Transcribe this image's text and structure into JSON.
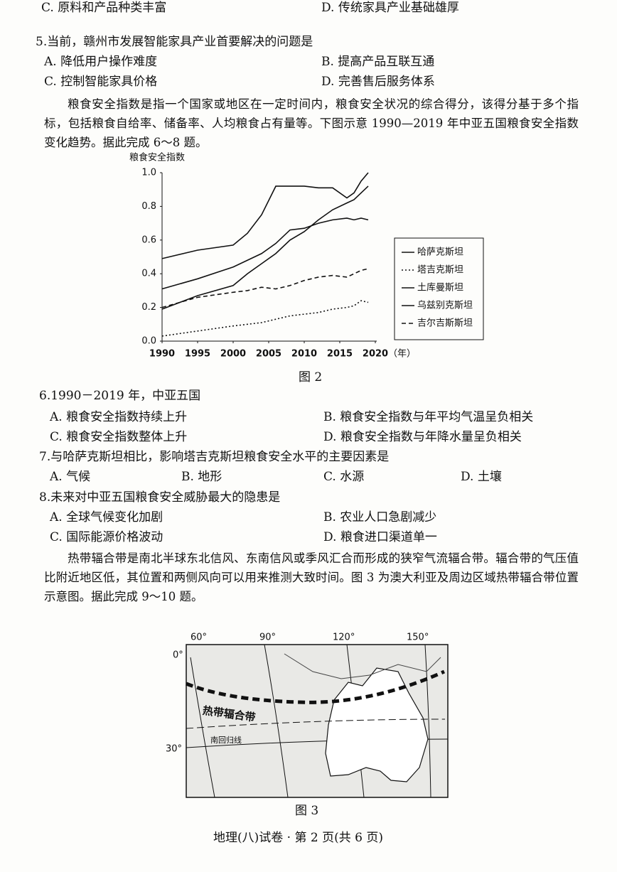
{
  "q4": {
    "options": [
      "",
      "",
      "C. 原料和产品种类丰富",
      "D. 传统家具产业基础雄厚"
    ]
  },
  "q5": {
    "stem": "5.当前，赣州市发展智能家具产业首要解决的问题是",
    "options": [
      "A. 降低用户操作难度",
      "B. 提高产品互联互通",
      "C. 控制智能家具价格",
      "D. 完善售后服务体系"
    ]
  },
  "passage1": "粮食安全指数是指一个国家或地区在一定时间内，粮食安全状况的综合得分，该得分基于多个指标，包括粮食自给率、储备率、人均粮食占有量等。下图示意 1990—2019 年中亚五国粮食安全指数变化趋势。据此完成 6～8 题。",
  "figure2": {
    "type": "line",
    "ylabel": "粮食安全指数",
    "xlabel": "（年）",
    "caption": "图 2",
    "xlim": [
      1990,
      2020
    ],
    "xticks": [
      1990,
      1995,
      2000,
      2005,
      2010,
      2015,
      2020
    ],
    "ylim": [
      0,
      1
    ],
    "yticks": [
      {
        "value": 0,
        "label": "0.0"
      },
      0.2,
      0.4,
      0.6,
      0.8,
      {
        "value": 1,
        "label": "1.0"
      }
    ],
    "x": [
      1990,
      1995,
      2000,
      2002,
      2004,
      2006,
      2008,
      2010,
      2012,
      2014,
      2016,
      2017,
      2018,
      2019
    ],
    "series": [
      {
        "name": "哈萨克斯坦",
        "color": "#111111",
        "dash": "solid",
        "values": [
          0.49,
          0.54,
          0.57,
          0.64,
          0.75,
          0.92,
          0.92,
          0.92,
          0.91,
          0.91,
          0.85,
          0.88,
          0.95,
          1.0
        ]
      },
      {
        "name": "塔吉克斯坦",
        "color": "#111111",
        "dash": "dotted",
        "values": [
          0.03,
          0.06,
          0.09,
          0.1,
          0.11,
          0.13,
          0.15,
          0.16,
          0.17,
          0.19,
          0.2,
          0.21,
          0.24,
          0.23
        ]
      },
      {
        "name": "土库曼斯坦",
        "color": "#111111",
        "dash": "solid",
        "values": [
          0.31,
          0.37,
          0.44,
          0.48,
          0.52,
          0.58,
          0.66,
          0.67,
          0.7,
          0.72,
          0.73,
          0.72,
          0.73,
          0.72
        ]
      },
      {
        "name": "乌兹别克斯坦",
        "color": "#111111",
        "dash": "solid",
        "values": [
          0.19,
          0.27,
          0.33,
          0.4,
          0.46,
          0.52,
          0.6,
          0.65,
          0.72,
          0.78,
          0.82,
          0.84,
          0.88,
          0.92
        ]
      },
      {
        "name": "吉尔吉斯斯坦",
        "color": "#111111",
        "dash": "dashed",
        "values": [
          0.2,
          0.26,
          0.29,
          0.3,
          0.32,
          0.31,
          0.33,
          0.36,
          0.38,
          0.39,
          0.38,
          0.4,
          0.42,
          0.43
        ]
      }
    ]
  },
  "q6": {
    "stem": "6.1990－2019 年，中亚五国",
    "options": [
      "A. 粮食安全指数持续上升",
      "B. 粮食安全指数与年平均气温呈负相关",
      "C. 粮食安全指数整体上升",
      "D. 粮食安全指数与年降水量呈负相关"
    ]
  },
  "q7": {
    "stem": "7.与哈萨克斯坦相比，影响塔吉克斯坦粮食安全水平的主要因素是",
    "options": [
      "A. 气候",
      "B. 地形",
      "C. 水源",
      "D. 土壤"
    ]
  },
  "q8": {
    "stem": "8.未来对中亚五国粮食安全威胁最大的隐患是",
    "options": [
      "A. 全球气候变化加剧",
      "B. 农业人口急剧减少",
      "C. 国际能源价格波动",
      "D. 粮食进口渠道单一"
    ]
  },
  "passage2": "热带辐合带是南北半球东北信风、东南信风或季风汇合而形成的狭窄气流辐合带。辐合带的气压值比附近地区低，其位置和两侧风向可以用来推测大致时间。图 3 为澳大利亚及周边区域热带辐合带位置示意图。据此完成 9～10 题。",
  "figure3": {
    "longitudes": [
      "60°",
      "90°",
      "120°",
      "150°"
    ],
    "latitudes": [
      "0°",
      "30°"
    ],
    "itcz_label": "热带辐合带",
    "tropic_label": "南回归线",
    "caption": "图 3"
  },
  "footer": "地理(八)试卷 · 第 2 页(共 6 页)"
}
